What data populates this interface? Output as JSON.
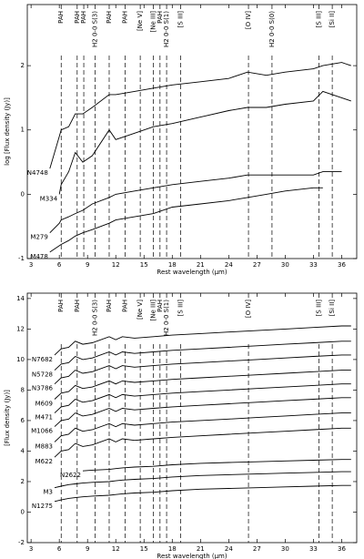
{
  "chart_data": [
    {
      "type": "line",
      "xlabel": "Rest wavelength (μm)",
      "ylabel": "log [Flux density (Jy)]",
      "xlim": [
        2.6,
        37.6
      ],
      "ylim": [
        -1,
        2.95
      ],
      "xticks": [
        3,
        6,
        9,
        12,
        15,
        18,
        21,
        24,
        27,
        30,
        33,
        36
      ],
      "yticks": [
        -1,
        0,
        1,
        2
      ],
      "x": [
        5,
        6,
        6.2,
        7,
        7.7,
        8.5,
        9.5,
        11.3,
        12,
        14,
        16,
        18,
        21,
        24,
        26,
        28,
        30,
        33,
        34,
        36,
        37
      ],
      "series": [
        {
          "name": "N4748",
          "color": "#000000",
          "values": [
            0.4,
            0.9,
            1.0,
            1.05,
            1.25,
            1.25,
            1.35,
            1.55,
            1.55,
            1.6,
            1.65,
            1.7,
            1.75,
            1.8,
            1.9,
            1.85,
            1.9,
            1.95,
            2.0,
            2.05,
            2.0
          ]
        },
        {
          "name": "M334",
          "color": "#000000",
          "values": [
            null,
            0.0,
            0.15,
            0.35,
            0.65,
            0.5,
            0.6,
            1.0,
            0.85,
            0.95,
            1.05,
            1.1,
            1.2,
            1.3,
            1.35,
            1.35,
            1.4,
            1.45,
            1.6,
            1.5,
            1.45
          ]
        },
        {
          "name": "M279",
          "color": "#000000",
          "values": [
            -0.6,
            -0.45,
            -0.4,
            -0.35,
            -0.3,
            -0.25,
            -0.15,
            -0.05,
            0.0,
            0.05,
            0.1,
            0.15,
            0.2,
            0.25,
            0.3,
            0.3,
            0.3,
            0.3,
            0.35,
            0.35,
            null
          ]
        },
        {
          "name": "M478",
          "color": "#000000",
          "values": [
            -0.9,
            -0.8,
            -0.78,
            -0.72,
            -0.65,
            -0.6,
            -0.55,
            -0.45,
            -0.4,
            -0.35,
            -0.3,
            -0.2,
            -0.15,
            -0.1,
            -0.05,
            0.0,
            0.05,
            0.1,
            0.1,
            null,
            null
          ]
        }
      ],
      "lines": [
        {
          "x": 6.2,
          "label": "PAH"
        },
        {
          "x": 7.9,
          "label": "PAH"
        },
        {
          "x": 8.6,
          "label": "PAH"
        },
        {
          "x": 9.8,
          "label": "H2 0-0 S(3)"
        },
        {
          "x": 11.3,
          "label": "PAH"
        },
        {
          "x": 13.0,
          "label": "PAH"
        },
        {
          "x": 14.6,
          "label": "[Ne V]"
        },
        {
          "x": 16.0,
          "label": "[Ne III]"
        },
        {
          "x": 16.7,
          "label": "PAH"
        },
        {
          "x": 17.4,
          "label": "H2 0-0 S(1)"
        },
        {
          "x": 18.9,
          "label": "[S III]"
        },
        {
          "x": 26.1,
          "label": "[O IV]"
        },
        {
          "x": 28.6,
          "label": "H2 0-0 S(0)"
        },
        {
          "x": 33.6,
          "label": "[S III]"
        },
        {
          "x": 35.0,
          "label": "[Si II]"
        }
      ]
    },
    {
      "type": "line",
      "xlabel": "Rest wavelength (μm)",
      "ylabel": "[Flux density (Jy)]",
      "xlim": [
        2.6,
        37.6
      ],
      "ylim": [
        -2,
        14.35
      ],
      "xticks": [
        3,
        6,
        9,
        12,
        15,
        18,
        21,
        24,
        27,
        30,
        33,
        36
      ],
      "yticks": [
        -2,
        0,
        2,
        4,
        6,
        8,
        10,
        12,
        14
      ],
      "x": [
        5.5,
        6.2,
        7,
        7.7,
        8.5,
        9.5,
        11.3,
        12,
        12.7,
        14,
        16,
        18,
        21,
        24,
        27,
        30,
        33,
        36,
        37
      ],
      "series": [
        {
          "name": "N7682",
          "color": "#000000",
          "values": [
            10.3,
            10.7,
            10.8,
            11.2,
            11.0,
            11.1,
            11.5,
            11.3,
            11.5,
            11.4,
            11.5,
            11.6,
            11.7,
            11.8,
            11.9,
            12.0,
            12.1,
            12.2,
            12.2
          ]
        },
        {
          "name": "N5728",
          "color": "#000000",
          "values": [
            9.3,
            9.7,
            9.8,
            10.2,
            10.0,
            10.1,
            10.5,
            10.3,
            10.5,
            10.4,
            10.5,
            10.6,
            10.7,
            10.8,
            10.9,
            11.0,
            11.1,
            11.2,
            11.2
          ]
        },
        {
          "name": "N3786",
          "color": "#000000",
          "values": [
            8.4,
            8.8,
            8.9,
            9.3,
            9.1,
            9.2,
            9.6,
            9.4,
            9.6,
            9.5,
            9.6,
            9.7,
            9.8,
            9.9,
            10.0,
            10.1,
            10.2,
            10.3,
            10.3
          ]
        },
        {
          "name": "M609",
          "color": "#000000",
          "values": [
            7.4,
            7.8,
            7.9,
            8.3,
            8.1,
            8.2,
            8.6,
            8.4,
            8.6,
            8.5,
            8.6,
            8.7,
            8.8,
            8.9,
            9.0,
            9.1,
            9.2,
            9.3,
            9.3
          ]
        },
        {
          "name": "M471",
          "color": "#000000",
          "values": [
            6.5,
            6.9,
            7.0,
            7.4,
            7.2,
            7.3,
            7.7,
            7.5,
            7.7,
            7.6,
            7.7,
            7.8,
            7.9,
            8.0,
            8.1,
            8.2,
            8.3,
            8.4,
            8.4
          ]
        },
        {
          "name": "M1066",
          "color": "#000000",
          "values": [
            5.6,
            6.0,
            6.1,
            6.5,
            6.3,
            6.4,
            6.8,
            6.6,
            6.8,
            6.7,
            6.8,
            6.9,
            7.0,
            7.1,
            7.2,
            7.3,
            7.4,
            7.5,
            7.5
          ]
        },
        {
          "name": "M883",
          "color": "#000000",
          "values": [
            4.6,
            5.0,
            5.1,
            5.5,
            5.3,
            5.4,
            5.8,
            5.6,
            5.8,
            5.7,
            5.8,
            5.9,
            6.0,
            6.1,
            6.2,
            6.3,
            6.4,
            6.5,
            6.5
          ]
        },
        {
          "name": "M622",
          "color": "#000000",
          "values": [
            3.6,
            4.0,
            4.1,
            4.5,
            4.3,
            4.4,
            4.8,
            4.6,
            4.8,
            4.7,
            4.8,
            4.9,
            5.0,
            5.1,
            5.2,
            5.3,
            5.4,
            5.5,
            5.5
          ]
        },
        {
          "name": "N2622",
          "color": "#000000",
          "values": [
            null,
            null,
            null,
            null,
            2.7,
            2.75,
            2.8,
            2.85,
            2.9,
            2.95,
            3.0,
            3.1,
            3.2,
            3.25,
            3.3,
            3.35,
            3.4,
            3.45,
            3.45
          ]
        },
        {
          "name": "M3",
          "color": "#000000",
          "values": [
            1.6,
            1.7,
            1.8,
            1.85,
            1.9,
            1.95,
            2.0,
            2.05,
            2.1,
            2.15,
            2.2,
            2.3,
            2.4,
            2.45,
            2.5,
            2.55,
            2.6,
            2.65,
            2.65
          ]
        },
        {
          "name": "N1275",
          "color": "#000000",
          "values": [
            0.7,
            0.8,
            0.9,
            0.95,
            1.0,
            1.05,
            1.1,
            1.15,
            1.2,
            1.25,
            1.3,
            1.4,
            1.5,
            1.55,
            1.6,
            1.65,
            1.7,
            1.75,
            1.75
          ]
        }
      ],
      "lines": [
        {
          "x": 6.2,
          "label": "PAH"
        },
        {
          "x": 7.9,
          "label": "PAH"
        },
        {
          "x": 9.8,
          "label": "H2 0-0 S(3)"
        },
        {
          "x": 11.3,
          "label": "PAH"
        },
        {
          "x": 13.0,
          "label": "PAH"
        },
        {
          "x": 14.6,
          "label": "[Ne V]"
        },
        {
          "x": 16.0,
          "label": "[Ne III]"
        },
        {
          "x": 16.7,
          "label": "PAH"
        },
        {
          "x": 17.4,
          "label": "H2 0-0 S(1)"
        },
        {
          "x": 18.9,
          "label": "[S III]"
        },
        {
          "x": 26.1,
          "label": "[O IV]"
        },
        {
          "x": 33.6,
          "label": "[S III]"
        },
        {
          "x": 35.0,
          "label": "[Si II]"
        }
      ]
    }
  ]
}
